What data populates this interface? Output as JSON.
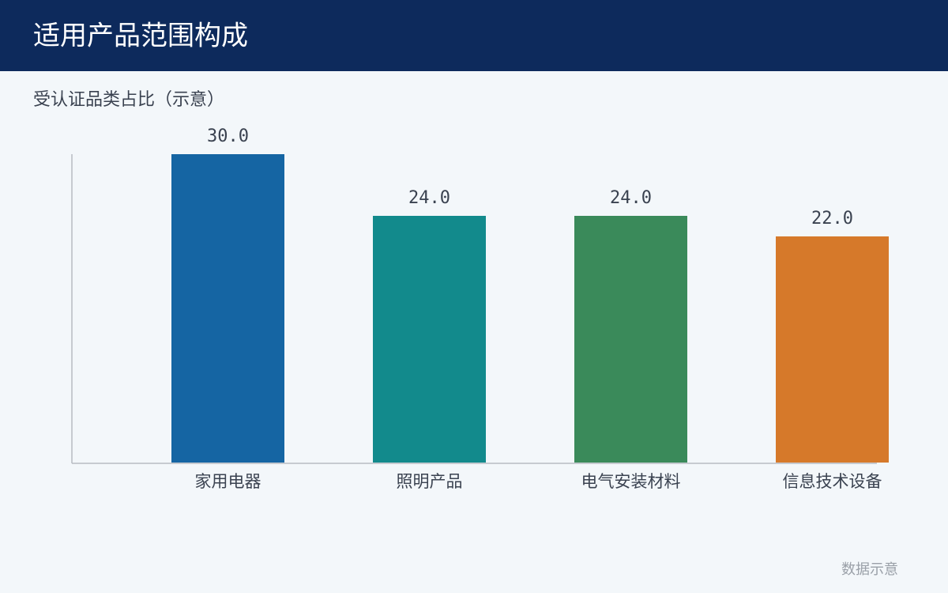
{
  "header": {
    "title": "适用产品范围构成"
  },
  "chart_data": {
    "type": "bar",
    "title": "受认证品类占比（示意）",
    "categories": [
      "家用电器",
      "照明产品",
      "电气安装材料",
      "信息技术设备"
    ],
    "values": [
      30,
      24,
      24,
      22
    ],
    "value_labels": [
      "30.0",
      "24.0",
      "24.0",
      "22.0"
    ],
    "colors": [
      "#1565a3",
      "#128a8c",
      "#3a8a5a",
      "#d6792a"
    ],
    "ylim": [
      0,
      30
    ]
  },
  "footer": {
    "note": "数据示意"
  }
}
